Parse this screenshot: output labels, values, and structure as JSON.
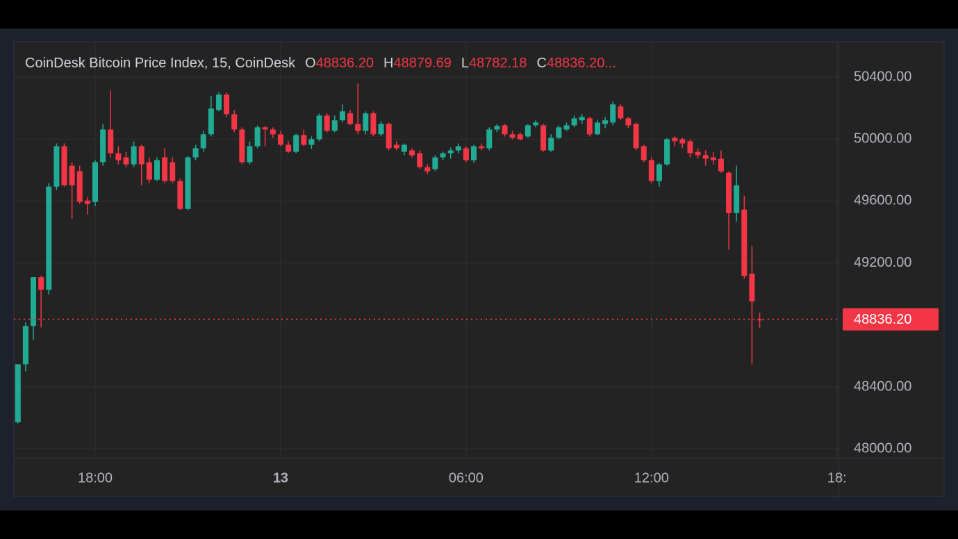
{
  "chart_data": {
    "type": "candlestick",
    "title": "CoinDesk Bitcoin Price Index, 15, CoinDesk",
    "ohlc_legend": [
      {
        "key": "O",
        "value": "48836.20"
      },
      {
        "key": "H",
        "value": "48879.69"
      },
      {
        "key": "L",
        "value": "48782.18"
      },
      {
        "key": "C",
        "value": "48836.20..."
      }
    ],
    "x": [
      15.5,
      15.75,
      16,
      16.25,
      16.5,
      16.75,
      17,
      17.25,
      17.5,
      17.75,
      18,
      18.25,
      18.5,
      18.75,
      19,
      19.25,
      19.5,
      19.75,
      20,
      20.25,
      20.5,
      20.75,
      21,
      21.25,
      21.5,
      21.75,
      22,
      22.25,
      22.5,
      22.75,
      23,
      23.25,
      23.5,
      23.75,
      24,
      24.25,
      24.5,
      24.75,
      25,
      25.25,
      25.5,
      25.75,
      26,
      26.25,
      26.5,
      26.75,
      27,
      27.25,
      27.5,
      27.75,
      28,
      28.25,
      28.5,
      28.75,
      29,
      29.25,
      29.5,
      29.75,
      30,
      30.25,
      30.5,
      30.75,
      31,
      31.25,
      31.5,
      31.75,
      32,
      32.25,
      32.5,
      32.75,
      33,
      33.25,
      33.5,
      33.75,
      34,
      34.25,
      34.5,
      34.75,
      35,
      35.25,
      35.5,
      35.75,
      36,
      36.25,
      36.5,
      36.75,
      37,
      37.25,
      37.5,
      37.75,
      38,
      38.25,
      38.5,
      38.75,
      39,
      39.25,
      39.5
    ],
    "open": [
      48172,
      48546,
      48793,
      49108,
      49027,
      49693,
      49954,
      49828,
      49792,
      49603,
      49594,
      49851,
      50062,
      49909,
      49882,
      49837,
      49954,
      49851,
      49738,
      49882,
      49851,
      49729,
      49549,
      49882,
      49941,
      50031,
      50188,
      50287,
      50161,
      50062,
      49851,
      49954,
      50076,
      50062,
      50031,
      49963,
      49918,
      50026,
      49963,
      49999,
      50152,
      50053,
      50121,
      50166,
      50098,
      50053,
      50166,
      50031,
      50098,
      49963,
      49918,
      49927,
      49909,
      49819,
      49806,
      49882,
      49909,
      49927,
      49941,
      49864,
      49954,
      49941,
      50062,
      50089,
      50031,
      50031,
      50017,
      50089,
      50089,
      49927,
      50008,
      50062,
      50089,
      50121,
      50134,
      50031,
      50098,
      50107,
      50211,
      50134,
      50098,
      49954,
      49864,
      49729,
      49837,
      50008,
      49999,
      49986,
      49918,
      49896,
      49882,
      49873,
      49783,
      49522,
      49545,
      49131,
      48836.2
    ],
    "high": [
      48546,
      48816,
      49108,
      49117,
      49716,
      49972,
      49972,
      49851,
      49828,
      49626,
      49864,
      50098,
      50314,
      49954,
      49918,
      49986,
      49963,
      49882,
      49882,
      49941,
      49882,
      49747,
      49891,
      49963,
      50053,
      50278,
      50301,
      50301,
      50188,
      50076,
      49986,
      50089,
      50085,
      50076,
      50053,
      49986,
      50035,
      50062,
      50017,
      50166,
      50166,
      50152,
      50224,
      50188,
      50359,
      50179,
      50179,
      50116,
      50107,
      49986,
      49972,
      49941,
      49927,
      49837,
      49896,
      49918,
      49945,
      49972,
      49954,
      49963,
      49972,
      50076,
      50098,
      50098,
      50053,
      50044,
      50098,
      50121,
      50098,
      50031,
      50089,
      50107,
      50152,
      50161,
      50143,
      50125,
      50143,
      50242,
      50224,
      50143,
      50107,
      49963,
      49882,
      49846,
      50008,
      50017,
      50008,
      49999,
      49941,
      49927,
      49918,
      49927,
      49792,
      49828,
      49635,
      49311,
      48879.69
    ],
    "low": [
      48163,
      48501,
      48703,
      48784,
      48996,
      49671,
      49693,
      49486,
      49581,
      49513,
      49567,
      49828,
      49882,
      49837,
      49819,
      49819,
      49702,
      49716,
      49729,
      49716,
      49716,
      49540,
      49540,
      49864,
      49918,
      50017,
      50179,
      50143,
      50044,
      49837,
      49837,
      49941,
      49954,
      50008,
      49954,
      49909,
      49909,
      49954,
      49936,
      49986,
      50044,
      50044,
      50107,
      50089,
      50031,
      50031,
      50017,
      50017,
      49927,
      49927,
      49896,
      49882,
      49806,
      49774,
      49792,
      49864,
      49873,
      49909,
      49851,
      49846,
      49927,
      49927,
      50044,
      50017,
      49999,
      49990,
      50008,
      50076,
      49918,
      49918,
      49999,
      50053,
      50076,
      50098,
      50017,
      50026,
      50071,
      50089,
      50121,
      50071,
      49927,
      49851,
      49716,
      49693,
      49828,
      49954,
      49941,
      49882,
      49873,
      49828,
      49837,
      49783,
      49288,
      49468,
      49099,
      48546,
      48782.18
    ],
    "close": [
      48546,
      48793,
      49108,
      49027,
      49693,
      49954,
      49702,
      49702,
      49594,
      49581,
      49851,
      50062,
      49909,
      49864,
      49837,
      49954,
      49837,
      49738,
      49864,
      49729,
      49729,
      49549,
      49882,
      49941,
      50031,
      50197,
      50287,
      50161,
      50062,
      49851,
      49954,
      50076,
      50062,
      50031,
      49963,
      49918,
      50026,
      49963,
      49999,
      50152,
      50053,
      50121,
      50179,
      50098,
      50053,
      50166,
      50031,
      50098,
      49941,
      49941,
      49963,
      49896,
      49819,
      49792,
      49882,
      49909,
      49927,
      49954,
      49864,
      49954,
      49941,
      50062,
      50085,
      50031,
      50008,
      49999,
      50089,
      50107,
      49927,
      50008,
      50076,
      50089,
      50134,
      50143,
      50031,
      50107,
      50121,
      50224,
      50134,
      50089,
      49941,
      49864,
      49729,
      49837,
      49999,
      49986,
      49972,
      49909,
      49896,
      49873,
      49864,
      49792,
      49522,
      49702,
      49117,
      48951,
      48836.2
    ],
    "up_color": "#22ab94",
    "down_color": "#f23645",
    "xlim": [
      15.37,
      42.05
    ],
    "xticks": [
      {
        "value": 18,
        "label": "18:00"
      },
      {
        "value": 24,
        "label": "13"
      },
      {
        "value": 30,
        "label": "06:00"
      },
      {
        "value": 36,
        "label": "12:00"
      },
      {
        "value": 42,
        "label": "18:"
      }
    ],
    "ylim": [
      47938,
      50629
    ],
    "yticks": [
      {
        "value": 48000,
        "label": "48000.00"
      },
      {
        "value": 48400,
        "label": "48400.00"
      },
      {
        "value": 49200,
        "label": "49200.00"
      },
      {
        "value": 49600,
        "label": "49600.00"
      },
      {
        "value": 50000,
        "label": "50000.00"
      },
      {
        "value": 50400,
        "label": "50400.00"
      }
    ],
    "grid": true,
    "last_price": {
      "value": 48836.2,
      "label": "48836.20"
    }
  }
}
